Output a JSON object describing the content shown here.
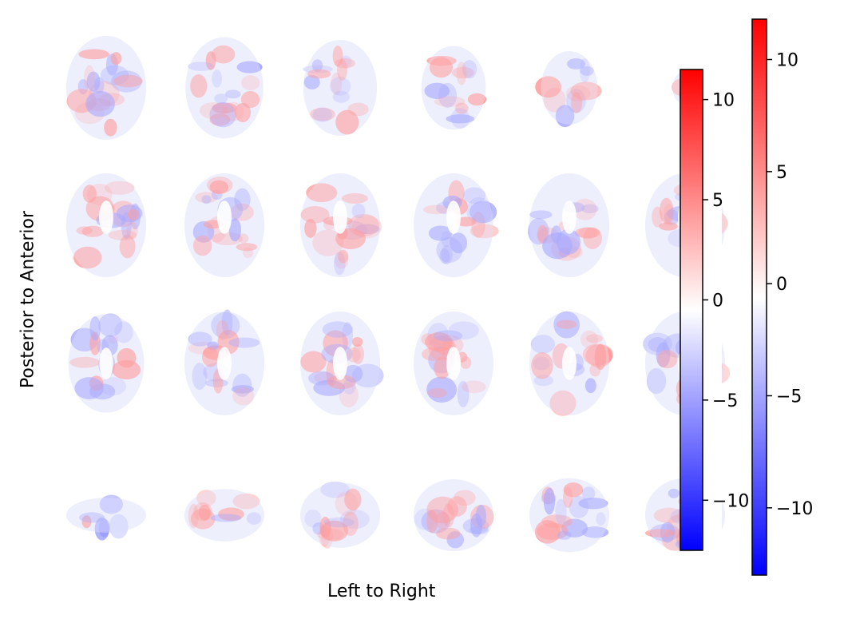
{
  "figure": {
    "xlabel": "Left to Right",
    "ylabel": "Posterior to Anterior",
    "colormap": "bwr",
    "colors": {
      "negative": "#0000ff",
      "zero": "#ffffff",
      "positive": "#ff0000"
    }
  },
  "slices": {
    "rows": 4,
    "cols": 6,
    "note_values": "relative brain area per slice",
    "grid": [
      [
        {
          "area": 1.0
        },
        {
          "area": 0.95
        },
        {
          "area": 0.85
        },
        {
          "area": 0.65
        },
        {
          "area": 0.5
        },
        {
          "area": 0.1
        }
      ],
      [
        {
          "area": 1.0
        },
        {
          "area": 1.0
        },
        {
          "area": 1.0
        },
        {
          "area": 1.0
        },
        {
          "area": 1.0
        },
        {
          "area": 1.0
        }
      ],
      [
        {
          "area": 0.9
        },
        {
          "area": 1.0
        },
        {
          "area": 1.0
        },
        {
          "area": 1.0
        },
        {
          "area": 1.0
        },
        {
          "area": 1.0
        }
      ],
      [
        {
          "area": 0.2
        },
        {
          "area": 0.45
        },
        {
          "area": 0.7
        },
        {
          "area": 0.85
        },
        {
          "area": 0.9
        },
        {
          "area": 0.9
        }
      ]
    ]
  },
  "colorbars": [
    {
      "name": "front",
      "min": -12.5,
      "max": 11.5,
      "ticks": [
        {
          "value": 10,
          "label": "10"
        },
        {
          "value": 5,
          "label": "5"
        },
        {
          "value": 0,
          "label": "0"
        },
        {
          "value": -5,
          "label": "−5"
        },
        {
          "value": -10,
          "label": "−10"
        }
      ]
    },
    {
      "name": "back",
      "min": -13,
      "max": 11.8,
      "ticks": [
        {
          "value": 10,
          "label": "10"
        },
        {
          "value": 5,
          "label": "5"
        },
        {
          "value": 0,
          "label": "0"
        },
        {
          "value": -5,
          "label": "−5"
        },
        {
          "value": -10,
          "label": "−10"
        }
      ]
    }
  ]
}
